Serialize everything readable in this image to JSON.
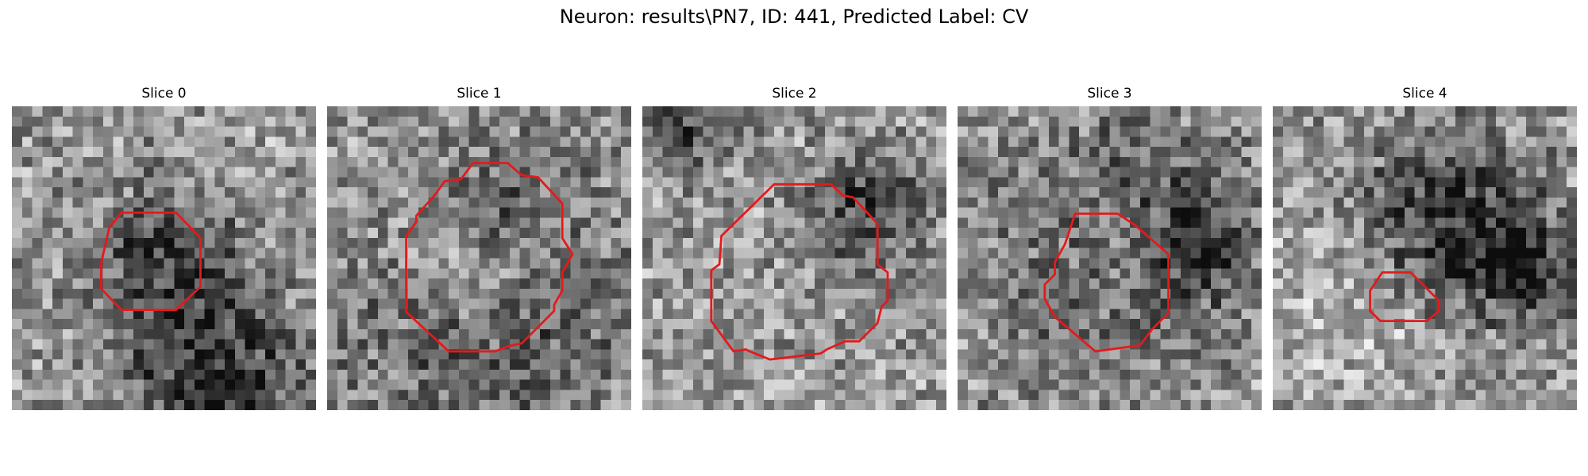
{
  "figure": {
    "suptitle": "Neuron: results\\PN7, ID: 441, Predicted Label: CV",
    "contour_color": "#e31a1c",
    "colormap": "gray",
    "grid_size": 30
  },
  "panels": [
    {
      "title": "Slice 0",
      "seed": 11,
      "dark_blobs": [
        [
          14.5,
          14.5,
          5,
          0.35
        ],
        [
          20,
          27,
          6,
          0.45
        ]
      ],
      "light_blobs": [],
      "contour": [
        [
          10.8,
          10.5
        ],
        [
          16.2,
          10.5
        ],
        [
          18.6,
          13.0
        ],
        [
          18.6,
          17.8
        ],
        [
          16.2,
          20.1
        ],
        [
          10.8,
          20.1
        ],
        [
          8.8,
          18.0
        ],
        [
          8.8,
          15.5
        ],
        [
          9.6,
          12.0
        ]
      ]
    },
    {
      "title": "Slice 1",
      "seed": 23,
      "dark_blobs": [
        [
          16,
          10,
          3,
          0.25
        ],
        [
          15,
          18,
          10,
          0.35
        ]
      ],
      "light_blobs": [
        [
          14,
          14,
          6,
          0.35
        ]
      ],
      "contour": [
        [
          14.4,
          5.6
        ],
        [
          17.8,
          5.6
        ],
        [
          19.2,
          6.8
        ],
        [
          20.8,
          7.0
        ],
        [
          23.2,
          9.6
        ],
        [
          23.2,
          13.0
        ],
        [
          24.2,
          14.6
        ],
        [
          23.2,
          16.4
        ],
        [
          23.2,
          18.2
        ],
        [
          22.4,
          19.6
        ],
        [
          22.4,
          20.2
        ],
        [
          19.2,
          23.4
        ],
        [
          17.8,
          23.7
        ],
        [
          16.6,
          24.2
        ],
        [
          12.0,
          24.2
        ],
        [
          7.8,
          20.3
        ],
        [
          7.8,
          12.8
        ],
        [
          8.8,
          11.4
        ],
        [
          8.8,
          10.8
        ],
        [
          10.6,
          8.8
        ],
        [
          11.6,
          7.4
        ],
        [
          13.2,
          7.2
        ]
      ]
    },
    {
      "title": "Slice 2",
      "seed": 37,
      "dark_blobs": [
        [
          22,
          10,
          4,
          0.35
        ],
        [
          4,
          2,
          3,
          0.3
        ]
      ],
      "light_blobs": [],
      "contour": [
        [
          13.0,
          7.7
        ],
        [
          18.6,
          7.7
        ],
        [
          19.8,
          8.8
        ],
        [
          20.8,
          9.0
        ],
        [
          23.2,
          11.6
        ],
        [
          23.2,
          15.6
        ],
        [
          24.2,
          16.4
        ],
        [
          24.2,
          19.2
        ],
        [
          23.6,
          19.8
        ],
        [
          23.2,
          21.4
        ],
        [
          21.4,
          23.2
        ],
        [
          20.0,
          23.2
        ],
        [
          18.2,
          24.0
        ],
        [
          17.6,
          24.4
        ],
        [
          12.6,
          25.0
        ],
        [
          10.6,
          24.2
        ],
        [
          10.2,
          24.0
        ],
        [
          9.0,
          24.2
        ],
        [
          6.8,
          21.2
        ],
        [
          6.8,
          16.2
        ],
        [
          7.6,
          15.6
        ],
        [
          7.8,
          12.8
        ]
      ]
    },
    {
      "title": "Slice 3",
      "seed": 51,
      "dark_blobs": [
        [
          16,
          13,
          9,
          0.3
        ],
        [
          23,
          13,
          3,
          0.3
        ]
      ],
      "light_blobs": [
        [
          15,
          14,
          4,
          0.2
        ]
      ],
      "contour": [
        [
          11.6,
          10.6
        ],
        [
          15.8,
          10.6
        ],
        [
          17.6,
          11.8
        ],
        [
          20.8,
          14.6
        ],
        [
          20.8,
          20.4
        ],
        [
          19.2,
          22.0
        ],
        [
          18.0,
          23.6
        ],
        [
          13.6,
          24.2
        ],
        [
          9.6,
          20.8
        ],
        [
          8.6,
          19.0
        ],
        [
          8.6,
          17.6
        ],
        [
          9.6,
          16.6
        ],
        [
          9.6,
          15.4
        ],
        [
          10.6,
          13.6
        ]
      ]
    },
    {
      "title": "Slice 4",
      "seed": 67,
      "dark_blobs": [
        [
          16,
          11,
          6,
          0.4
        ],
        [
          24,
          15,
          4,
          0.35
        ]
      ],
      "light_blobs": [
        [
          8,
          19,
          6,
          0.15
        ]
      ],
      "contour": [
        [
          10.8,
          16.4
        ],
        [
          13.6,
          16.4
        ],
        [
          14.8,
          17.6
        ],
        [
          16.4,
          19.2
        ],
        [
          16.4,
          20.2
        ],
        [
          15.2,
          21.2
        ],
        [
          10.6,
          21.2
        ],
        [
          9.6,
          20.2
        ],
        [
          9.6,
          18.2
        ]
      ]
    }
  ]
}
